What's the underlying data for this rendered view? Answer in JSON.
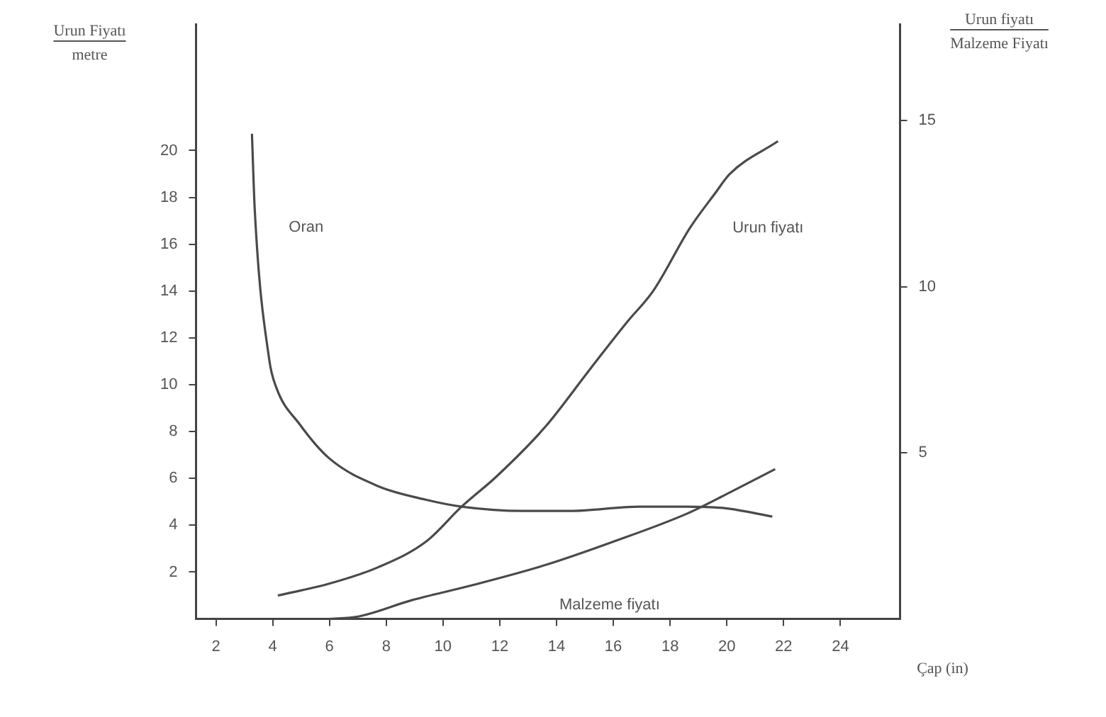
{
  "chart_data": {
    "type": "line",
    "xlabel": "Çap (in)",
    "ylabel": "Urun Fiyatı\nmetre",
    "y2label": "Urun fiyatı\nMalzeme Fiyatı",
    "xlim": [
      1.3,
      26.1
    ],
    "xticks": [
      2,
      4,
      6,
      8,
      10,
      12,
      14,
      16,
      18,
      20,
      22,
      24
    ],
    "ylim": [
      0,
      25.4
    ],
    "yticks": [
      2,
      4,
      6,
      8,
      10,
      12,
      14,
      16,
      18,
      20
    ],
    "y2lim": [
      0,
      17.9
    ],
    "y2ticks": [
      5,
      10,
      15
    ],
    "grid": false,
    "legend": false,
    "marker": "none",
    "line_style": "solid",
    "series": [
      {
        "name": "Oran",
        "color": "#4a4a4a",
        "axis": "y2",
        "x": [
          3.27,
          3.37,
          3.88,
          4.13,
          4.95,
          5.97,
          7.7,
          9.39,
          10.66,
          12.8,
          14.5,
          16.9,
          18.6,
          19.95,
          21.6
        ],
        "values": [
          14.6,
          12.3,
          7.8,
          6.96,
          5.86,
          4.85,
          4.0,
          3.59,
          3.38,
          3.25,
          3.25,
          3.38,
          3.38,
          3.33,
          3.08
        ]
      },
      {
        "name": "Urun fiyatı",
        "color": "#4a4a4a",
        "axis": "y",
        "x": [
          4.18,
          5.97,
          7.7,
          9.4,
          10.66,
          11.9,
          13.6,
          15.2,
          16.5,
          17.4,
          18.7,
          19.6,
          20.1,
          21.8
        ],
        "values": [
          1.0,
          1.5,
          2.2,
          3.3,
          4.8,
          6.1,
          8.2,
          10.7,
          12.7,
          14.0,
          16.7,
          18.2,
          19.0,
          20.4
        ]
      },
      {
        "name": "Malzeme fiyatı",
        "color": "#4a4a4a",
        "axis": "y",
        "x": [
          5.97,
          7.0,
          8.9,
          10.9,
          13.6,
          16.0,
          18.6,
          20.1,
          21.7
        ],
        "values": [
          0,
          0.1,
          0.8,
          1.4,
          2.3,
          3.3,
          4.5,
          5.4,
          6.4
        ]
      }
    ]
  }
}
